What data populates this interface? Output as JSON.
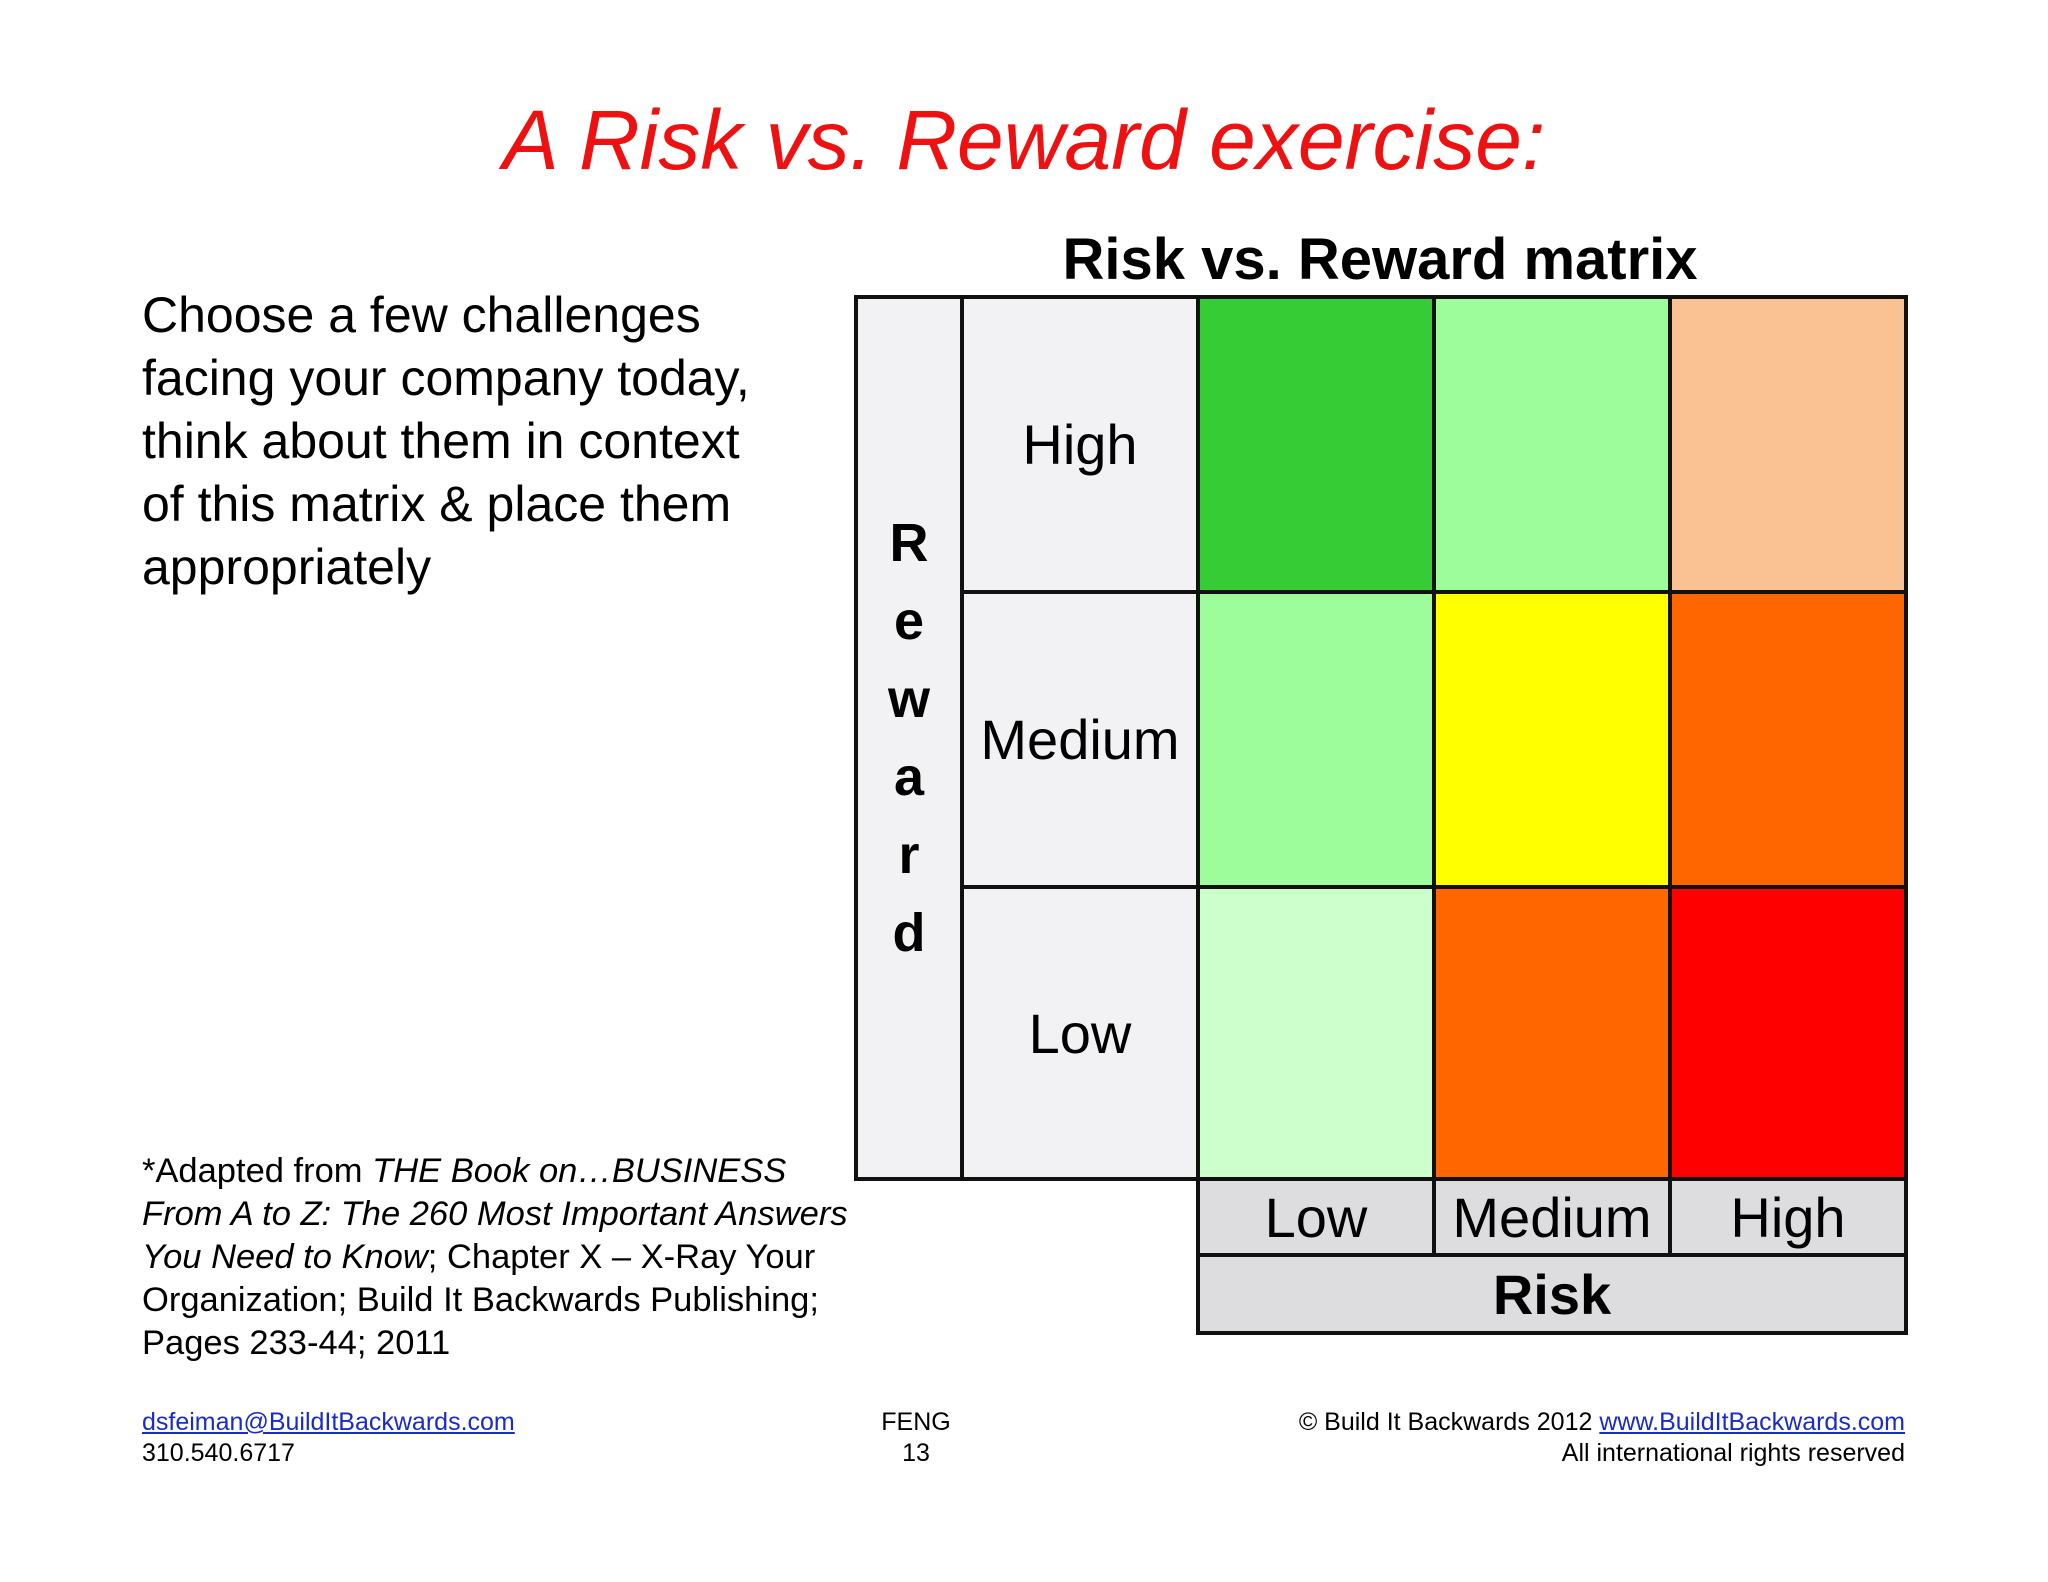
{
  "slide_title": "A Risk vs. Reward exercise:",
  "intro_lines": [
    "Choose a few challenges",
    "facing your company today,",
    "think about them in context",
    "of this matrix & place them",
    "appropriately"
  ],
  "matrix": {
    "title": "Risk vs. Reward matrix",
    "reward_axis_label": "Reward",
    "reward_axis_letters": [
      "R",
      "e",
      "w",
      "a",
      "r",
      "d"
    ],
    "risk_axis_label": "Risk",
    "reward_levels": [
      "High",
      "Medium",
      "Low"
    ],
    "risk_levels": [
      "Low",
      "Medium",
      "High"
    ],
    "cell_colors": [
      [
        "#35cc35",
        "#9dfd9b",
        "#fac193"
      ],
      [
        "#9dfd9b",
        "#ffff00",
        "#ff6600"
      ],
      [
        "#ccffcc",
        "#ff6600",
        "#ff0000"
      ]
    ]
  },
  "citation": {
    "line1_prefix": "*Adapted from ",
    "line1_italic": "THE Book on…BUSINESS",
    "line2_italic": "From A to Z: The 260 Most Important Answers",
    "line3_italic": "You Need to Know",
    "line3_rest": "; Chapter X – X-Ray Your",
    "line4": "Organization; Build It Backwards Publishing;",
    "line5": "Pages 233-44; 2011"
  },
  "footer": {
    "email": "dsfeiman@BuildItBackwards.com",
    "phone": "310.540.6717",
    "center_label": "FENG",
    "page_number": "13",
    "copyright": "© Build It Backwards 2012",
    "website": "www.BuildItBackwards.com",
    "rights": "All international rights reserved"
  }
}
